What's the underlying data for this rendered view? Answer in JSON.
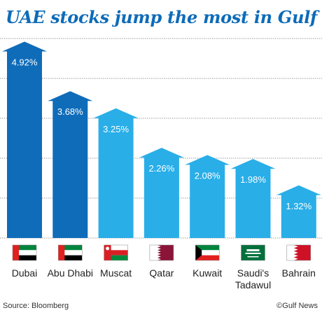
{
  "title": "UAE stocks jump the most in Gulf",
  "source": "Source: Bloomberg",
  "credit": "©Gulf News",
  "colors": {
    "dark_blue": "#0f6cb9",
    "light_blue": "#29aee8",
    "grid": "#9a9a9a",
    "title": "#0d6bb8"
  },
  "chart_data": {
    "type": "bar",
    "title": "UAE stocks jump the most in Gulf",
    "xlabel": "",
    "ylabel": "",
    "ylim": [
      0,
      5
    ],
    "grid": true,
    "categories": [
      "Dubai",
      "Abu Dhabi",
      "Muscat",
      "Qatar",
      "Kuwait",
      "Saudi's Tadawul",
      "Bahrain"
    ],
    "values": [
      4.92,
      3.68,
      3.25,
      2.26,
      2.08,
      1.98,
      1.32
    ],
    "data_labels": [
      "4.92%",
      "3.68%",
      "3.25%",
      "2.26%",
      "2.08%",
      "1.98%",
      "1.32%"
    ],
    "bar_colors": [
      "dark_blue",
      "dark_blue",
      "light_blue",
      "light_blue",
      "light_blue",
      "light_blue",
      "light_blue"
    ],
    "flags": [
      "uae-flag-icon",
      "uae-flag-icon",
      "oman-flag-icon",
      "qatar-flag-icon",
      "kuwait-flag-icon",
      "saudi-flag-icon",
      "bahrain-flag-icon"
    ]
  }
}
